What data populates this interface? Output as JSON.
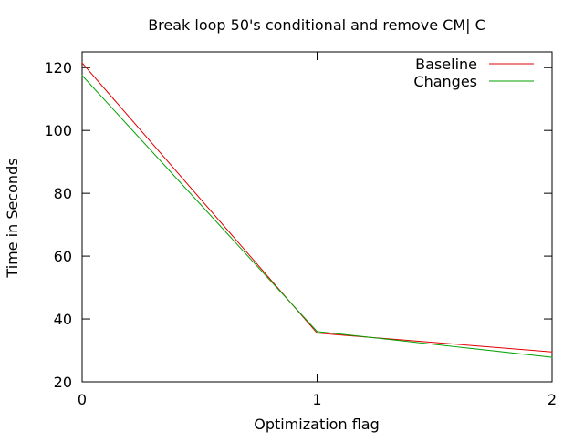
{
  "chart_data": {
    "type": "line",
    "title": "Break loop 50's conditional and remove CM| C",
    "xlabel": "Optimization flag",
    "ylabel": "Time in Seconds",
    "x": [
      0,
      1,
      2
    ],
    "xlim": [
      0,
      2
    ],
    "ylim": [
      20,
      125
    ],
    "xticks": [
      0,
      1,
      2
    ],
    "yticks": [
      20,
      40,
      60,
      80,
      100,
      120
    ],
    "grid": false,
    "legend_position": "top-right",
    "series": [
      {
        "name": "Baseline",
        "color": "#e00000",
        "values": [
          121.5,
          35.5,
          29.5
        ]
      },
      {
        "name": "Changes",
        "color": "#00a000",
        "values": [
          117.5,
          36.0,
          27.8
        ]
      }
    ]
  }
}
